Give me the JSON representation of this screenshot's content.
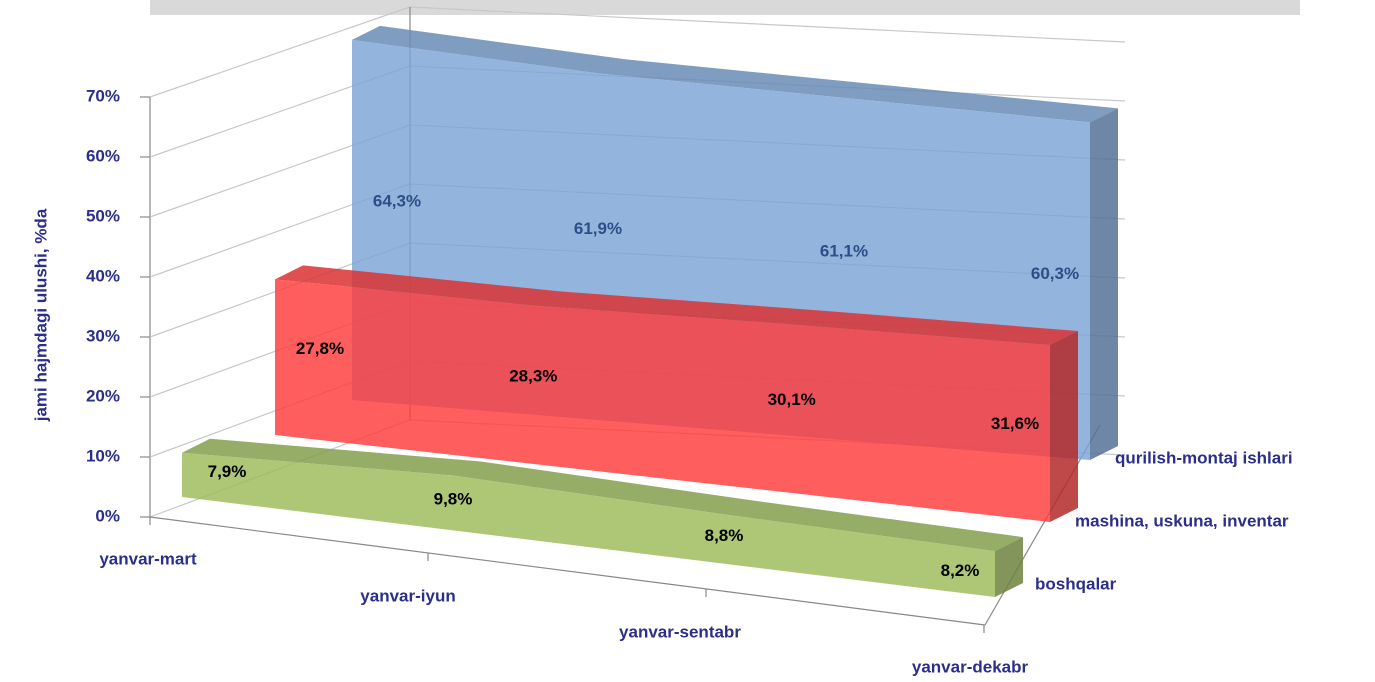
{
  "chart_data": {
    "type": "area3d",
    "y_label": "jami hajmdagi ulushi, %da",
    "categories": [
      "yanvar-mart",
      "yanvar-iyun",
      "yanvar-sentabr",
      "yanvar-dekabr"
    ],
    "series": [
      {
        "name": "qurilish-montaj ishlari",
        "color": "#7ba3d6",
        "label_color": "#2b4f86",
        "values": [
          64.3,
          61.9,
          61.1,
          60.3
        ],
        "value_labels": [
          "64,3%",
          "61,9%",
          "61,1%",
          "60,3%"
        ]
      },
      {
        "name": "mashina, uskuna,  inventar",
        "color": "#ff3b3b",
        "label_color": "#000000",
        "values": [
          27.8,
          28.3,
          30.1,
          31.6
        ],
        "value_labels": [
          "27,8%",
          "28,3%",
          "30,1%",
          "31,6%"
        ]
      },
      {
        "name": "boshqalar",
        "color": "#9bbb59",
        "label_color": "#000000",
        "values": [
          7.9,
          9.8,
          8.8,
          8.2
        ],
        "value_labels": [
          "7,9%",
          "9,8%",
          "8,8%",
          "8,2%"
        ]
      }
    ],
    "ylim": [
      0,
      70
    ],
    "yticks": [
      {
        "value": 0,
        "label": "0%"
      },
      {
        "value": 10,
        "label": "10%"
      },
      {
        "value": 20,
        "label": "20%"
      },
      {
        "value": 30,
        "label": "30%"
      },
      {
        "value": 40,
        "label": "40%"
      },
      {
        "value": 50,
        "label": "50%"
      },
      {
        "value": 60,
        "label": "60%"
      },
      {
        "value": 70,
        "label": "70%"
      }
    ],
    "grid": true
  }
}
